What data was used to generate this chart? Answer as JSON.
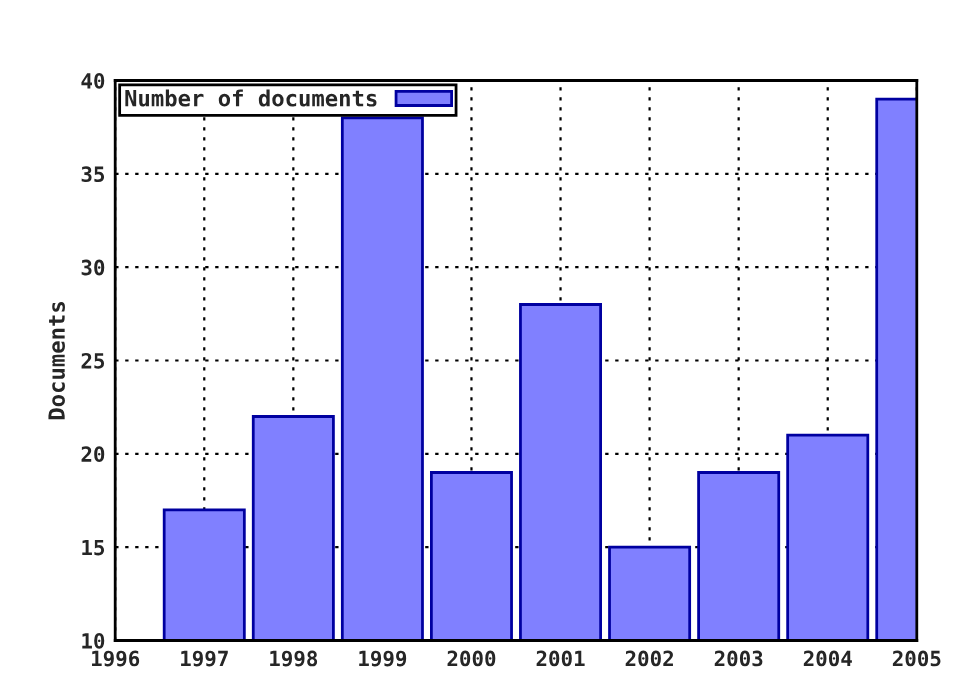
{
  "chart_data": {
    "type": "bar",
    "ylabel": "Documents",
    "x": [
      1997,
      1998,
      1999,
      2000,
      2001,
      2002,
      2003,
      2004,
      2005
    ],
    "series": [
      {
        "name": "Number of documents",
        "color": "#8080ff",
        "values": [
          17,
          22,
          38,
          19,
          28,
          15,
          19,
          21,
          39
        ]
      }
    ],
    "xlim": [
      1996,
      2005
    ],
    "xticks": [
      1996,
      1997,
      1998,
      1999,
      2000,
      2001,
      2002,
      2003,
      2004,
      2005
    ],
    "ylim": [
      10,
      40
    ],
    "yticks": [
      10,
      15,
      20,
      25,
      30,
      35,
      40
    ],
    "grid": true,
    "legend": "top left"
  }
}
